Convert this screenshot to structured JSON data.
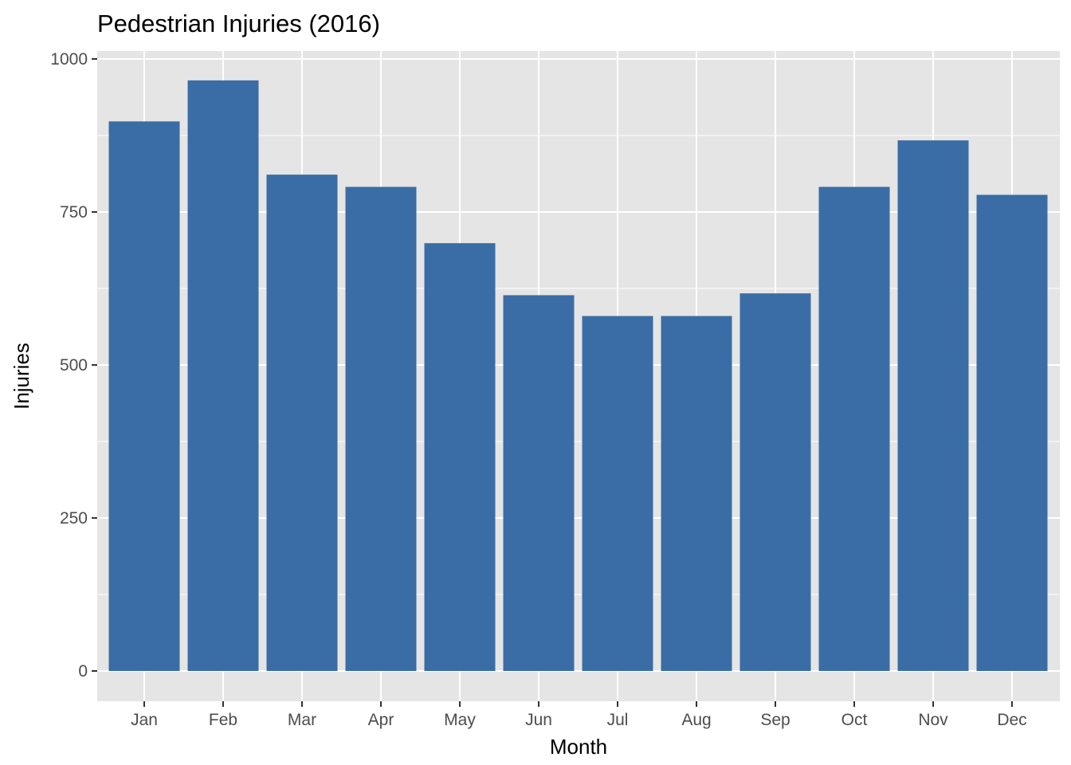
{
  "chart_data": {
    "type": "bar",
    "title": "Pedestrian Injuries (2016)",
    "xlabel": "Month",
    "ylabel": "Injuries",
    "categories": [
      "Jan",
      "Feb",
      "Mar",
      "Apr",
      "May",
      "Jun",
      "Jul",
      "Aug",
      "Sep",
      "Oct",
      "Nov",
      "Dec"
    ],
    "values": [
      898,
      965,
      811,
      791,
      699,
      614,
      580,
      580,
      617,
      791,
      867,
      778
    ],
    "ylim": [
      0,
      1000
    ],
    "yticks": [
      0,
      250,
      500,
      750,
      1000
    ],
    "ytick_labels": [
      "0",
      "250",
      "500",
      "750",
      "1000"
    ],
    "grid": true,
    "legend": "none",
    "colors": {
      "bar": "#3A6DA5",
      "panel": "#E5E5E5",
      "grid": "#FFFFFF",
      "tick_text": "#4D4D4D",
      "tick_mark": "#333333"
    }
  }
}
